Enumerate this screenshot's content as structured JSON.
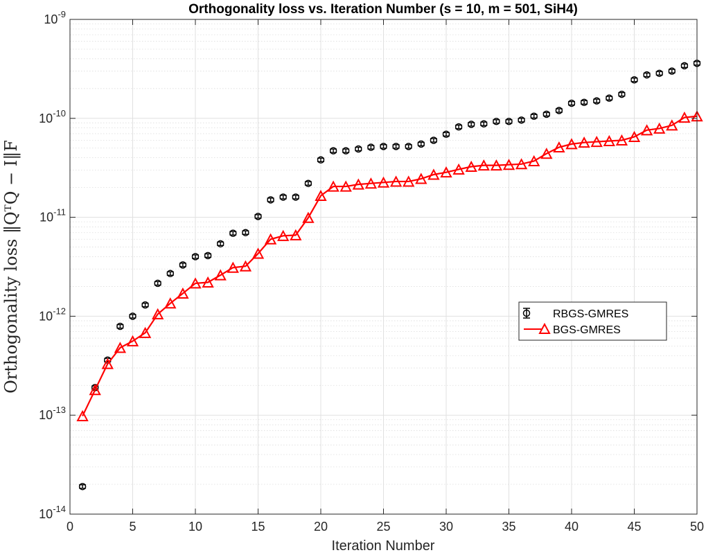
{
  "chart_data": {
    "type": "line",
    "title": "Orthogonality loss vs. Iteration Number (s = 10, m = 501, SiH4)",
    "xlabel": "Iteration Number",
    "ylabel": "Orthogonality loss ‖QᵀQ − I‖F",
    "xlim": [
      0,
      50
    ],
    "ylim": [
      1e-14,
      1e-09
    ],
    "yscale": "log",
    "grid": true,
    "legend_position": "right",
    "x_ticks": [
      "0",
      "5",
      "10",
      "15",
      "20",
      "25",
      "30",
      "35",
      "40",
      "45",
      "50"
    ],
    "y_ticks": [
      {
        "base": "10",
        "exp": "-14"
      },
      {
        "base": "10",
        "exp": "-13"
      },
      {
        "base": "10",
        "exp": "-12"
      },
      {
        "base": "10",
        "exp": "-11"
      },
      {
        "base": "10",
        "exp": "-10"
      },
      {
        "base": "10",
        "exp": "-9"
      }
    ],
    "x": [
      1,
      2,
      3,
      4,
      5,
      6,
      7,
      8,
      9,
      10,
      11,
      12,
      13,
      14,
      15,
      16,
      17,
      18,
      19,
      20,
      21,
      22,
      23,
      24,
      25,
      26,
      27,
      28,
      29,
      30,
      31,
      32,
      33,
      34,
      35,
      36,
      37,
      38,
      39,
      40,
      41,
      42,
      43,
      44,
      45,
      46,
      47,
      48,
      49,
      50
    ],
    "series": [
      {
        "name": "RBGS-GMRES",
        "marker": "circle-errorbar",
        "line": false,
        "color": "#000000",
        "values": [
          1.9e-14,
          1.9e-13,
          3.6e-13,
          7.9e-13,
          1e-12,
          1.3e-12,
          2.15e-12,
          2.7e-12,
          3.3e-12,
          4e-12,
          4.1e-12,
          5.4e-12,
          6.9e-12,
          7e-12,
          1.02e-11,
          1.5e-11,
          1.6e-11,
          1.6e-11,
          2.2e-11,
          3.8e-11,
          4.7e-11,
          4.7e-11,
          4.9e-11,
          5.1e-11,
          5.2e-11,
          5.2e-11,
          5.2e-11,
          5.5e-11,
          6e-11,
          6.9e-11,
          8.2e-11,
          8.7e-11,
          8.8e-11,
          9.3e-11,
          9.3e-11,
          9.6e-11,
          1.05e-10,
          1.1e-10,
          1.2e-10,
          1.42e-10,
          1.45e-10,
          1.5e-10,
          1.6e-10,
          1.75e-10,
          2.45e-10,
          2.75e-10,
          2.85e-10,
          3e-10,
          3.4e-10,
          3.6e-10
        ]
      },
      {
        "name": "BGS-GMRES",
        "marker": "triangle",
        "line": true,
        "color": "#ff0000",
        "values": [
          9.8e-14,
          1.8e-13,
          3.3e-13,
          4.8e-13,
          5.6e-13,
          6.8e-13,
          1.05e-12,
          1.35e-12,
          1.7e-12,
          2.15e-12,
          2.2e-12,
          2.6e-12,
          3.1e-12,
          3.2e-12,
          4.3e-12,
          6e-12,
          6.5e-12,
          6.6e-12,
          9.9e-12,
          1.65e-11,
          2.05e-11,
          2.05e-11,
          2.15e-11,
          2.2e-11,
          2.25e-11,
          2.3e-11,
          2.3e-11,
          2.45e-11,
          2.7e-11,
          2.85e-11,
          3.05e-11,
          3.25e-11,
          3.35e-11,
          3.35e-11,
          3.4e-11,
          3.45e-11,
          3.7e-11,
          4.4e-11,
          5.1e-11,
          5.5e-11,
          5.7e-11,
          5.8e-11,
          5.9e-11,
          6e-11,
          6.5e-11,
          7.6e-11,
          7.9e-11,
          8.5e-11,
          1.02e-10,
          1.05e-10
        ]
      }
    ]
  }
}
